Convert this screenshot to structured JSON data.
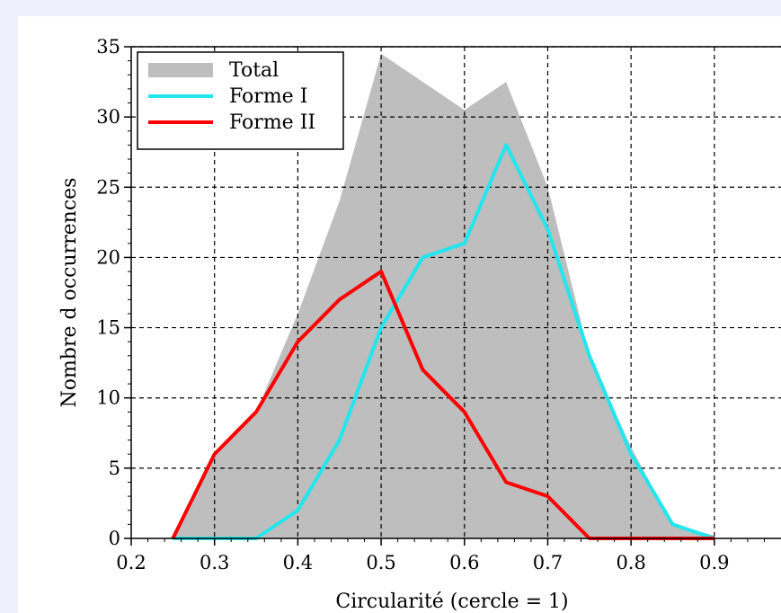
{
  "chart_data": {
    "type": "line",
    "xlabel": "Circularité (cercle = 1)",
    "ylabel": "Nombre d occurrences",
    "xlim": [
      0.2,
      0.98
    ],
    "ylim": [
      0,
      35
    ],
    "xticks": [
      "0.2",
      "0.3",
      "0.4",
      "0.5",
      "0.6",
      "0.7",
      "0.8",
      "0.9"
    ],
    "yticks": [
      "0",
      "5",
      "10",
      "15",
      "20",
      "25",
      "30",
      "35"
    ],
    "grid": true,
    "legend_position": "top-left",
    "series": [
      {
        "name": "Total",
        "kind": "area",
        "color": "#bebebe",
        "x": [
          0.25,
          0.3,
          0.35,
          0.4,
          0.45,
          0.5,
          0.55,
          0.6,
          0.65,
          0.7,
          0.75,
          0.8,
          0.85,
          0.9
        ],
        "y": [
          0,
          6,
          9,
          16,
          24,
          34.5,
          32.5,
          30.5,
          32.5,
          25,
          13,
          6.5,
          1,
          0.2
        ]
      },
      {
        "name": "Forme I",
        "kind": "line",
        "color": "#22e6ee",
        "x": [
          0.25,
          0.3,
          0.35,
          0.4,
          0.45,
          0.5,
          0.55,
          0.6,
          0.65,
          0.7,
          0.75,
          0.8,
          0.85,
          0.9
        ],
        "y": [
          0,
          0,
          0,
          2,
          7,
          15,
          20,
          21,
          28,
          22,
          13,
          6,
          1,
          0
        ]
      },
      {
        "name": "Forme II",
        "kind": "line",
        "color": "#ff0000",
        "x": [
          0.25,
          0.3,
          0.35,
          0.4,
          0.45,
          0.5,
          0.55,
          0.6,
          0.65,
          0.7,
          0.75,
          0.8,
          0.85,
          0.9
        ],
        "y": [
          0,
          6,
          9,
          14,
          17,
          19,
          12,
          9,
          4,
          3,
          0,
          0,
          0,
          0
        ]
      }
    ]
  }
}
